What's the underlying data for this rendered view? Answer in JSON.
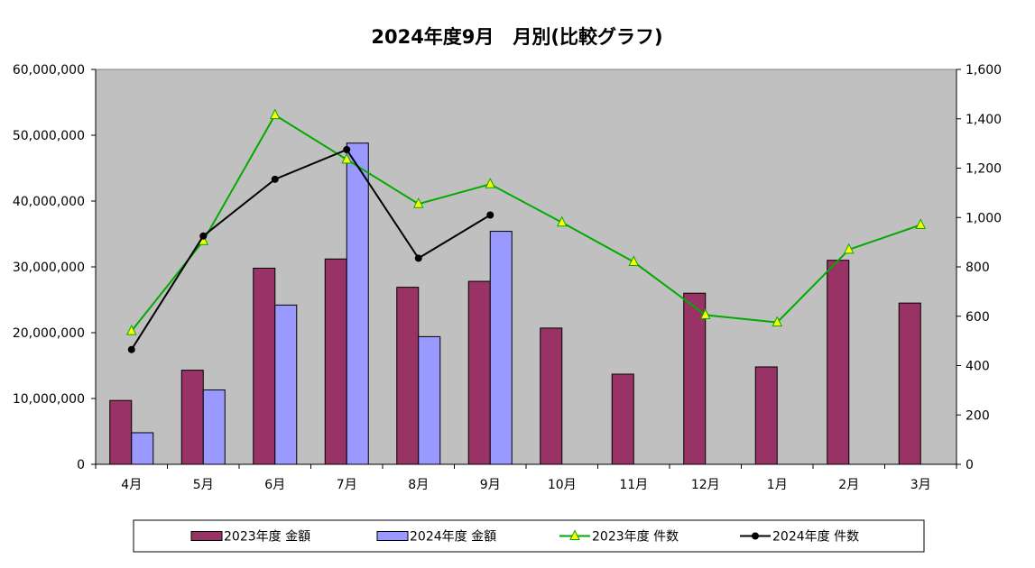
{
  "chart_data": {
    "type": "bar",
    "title": "2024年度9月　月別(比較グラフ)",
    "categories": [
      "4月",
      "5月",
      "6月",
      "7月",
      "8月",
      "9月",
      "10月",
      "11月",
      "12月",
      "1月",
      "2月",
      "3月"
    ],
    "series": [
      {
        "name": "2023年度 金額",
        "type": "bar",
        "axis": "left",
        "color": "#993366",
        "values": [
          9700000,
          14300000,
          29800000,
          31200000,
          26900000,
          27800000,
          20700000,
          13700000,
          26000000,
          14800000,
          31000000,
          24500000
        ]
      },
      {
        "name": "2024年度 金額",
        "type": "bar",
        "axis": "left",
        "color": "#9999FF",
        "values": [
          4800000,
          11300000,
          24200000,
          48800000,
          19400000,
          35400000,
          null,
          null,
          null,
          null,
          null,
          null
        ]
      },
      {
        "name": "2023年度 件数",
        "type": "line",
        "axis": "right",
        "color": "#00AA00",
        "marker": "triangle",
        "marker_color": "#FFFF00",
        "values": [
          540,
          905,
          1415,
          1235,
          1055,
          1135,
          980,
          820,
          605,
          575,
          870,
          970
        ]
      },
      {
        "name": "2024年度 件数",
        "type": "line",
        "axis": "right",
        "color": "#000000",
        "marker": "circle",
        "marker_color": "#000000",
        "values": [
          465,
          925,
          1155,
          1275,
          835,
          1010,
          null,
          null,
          null,
          null,
          null,
          null
        ]
      }
    ],
    "y_left": {
      "min": 0,
      "max": 60000000,
      "step": 10000000,
      "tick_labels": [
        "0",
        "10,000,000",
        "20,000,000",
        "30,000,000",
        "40,000,000",
        "50,000,000",
        "60,000,000"
      ]
    },
    "y_right": {
      "min": 0,
      "max": 1600,
      "step": 200,
      "tick_labels": [
        "0",
        "200",
        "400",
        "600",
        "800",
        "1,000",
        "1,200",
        "1,400",
        "1,600"
      ]
    },
    "grid": false,
    "plot_background": "#C0C0C0",
    "legend_position": "bottom"
  }
}
